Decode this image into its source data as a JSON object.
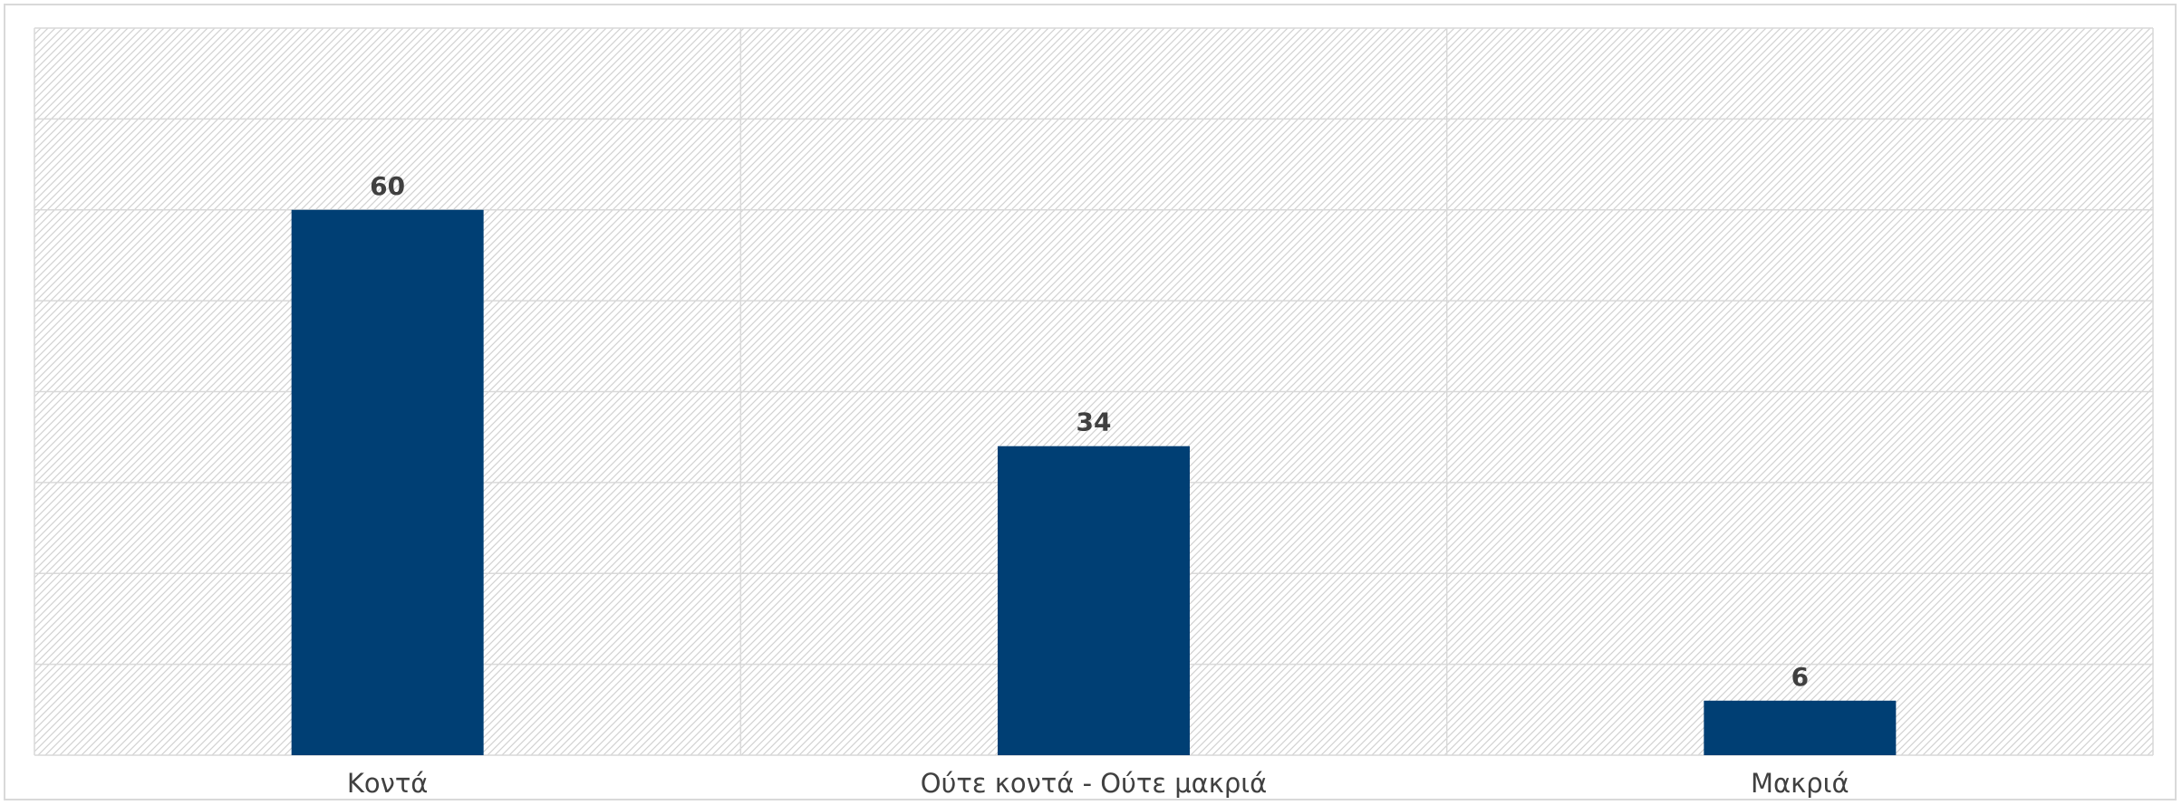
{
  "chart_data": {
    "type": "bar",
    "categories": [
      "Κοντά",
      "Ούτε κοντά - Ούτε μακριά",
      "Μακριά"
    ],
    "values": [
      60,
      34,
      6
    ],
    "data_labels": [
      "60",
      "34",
      "6"
    ],
    "title": "",
    "xlabel": "",
    "ylabel": "",
    "ylim": [
      0,
      80
    ],
    "grid": true,
    "legend": "none",
    "colors": {
      "bar": "#003f74",
      "grid": "#d9d9d9",
      "hatch": "#d2d2d2",
      "label": "#404040"
    }
  }
}
